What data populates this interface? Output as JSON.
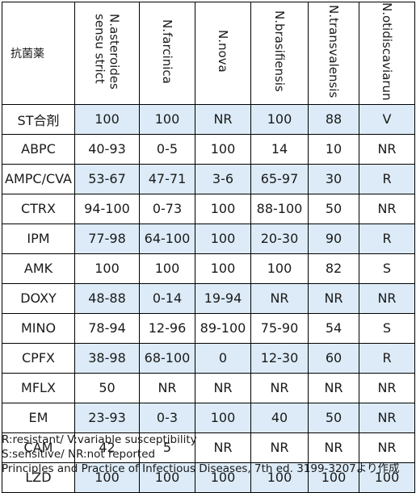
{
  "table": {
    "corner_label": "抗菌薬",
    "columns": [
      {
        "line1": "N.asteroides",
        "line2": "sensu strict"
      },
      {
        "line1": "N.farcinica",
        "line2": ""
      },
      {
        "line1": "N.nova",
        "line2": ""
      },
      {
        "line1": "N.brasifiensis",
        "line2": ""
      },
      {
        "line1": "N.transvalensis",
        "line2": ""
      },
      {
        "line1": "N.otidiscaviarun",
        "line2": ""
      }
    ],
    "rows": [
      {
        "drug": "ST合剤",
        "cells": [
          "100",
          "100",
          "NR",
          "100",
          "88",
          "V"
        ]
      },
      {
        "drug": "ABPC",
        "cells": [
          "40-93",
          "0-5",
          "100",
          "14",
          "10",
          "NR"
        ]
      },
      {
        "drug": "AMPC/CVA",
        "cells": [
          "53-67",
          "47-71",
          "3-6",
          "65-97",
          "30",
          "R"
        ]
      },
      {
        "drug": "CTRX",
        "cells": [
          "94-100",
          "0-73",
          "100",
          "88-100",
          "50",
          "NR"
        ]
      },
      {
        "drug": "IPM",
        "cells": [
          "77-98",
          "64-100",
          "100",
          "20-30",
          "90",
          "R"
        ]
      },
      {
        "drug": "AMK",
        "cells": [
          "100",
          "100",
          "100",
          "100",
          "82",
          "S"
        ]
      },
      {
        "drug": "DOXY",
        "cells": [
          "48-88",
          "0-14",
          "19-94",
          "NR",
          "NR",
          "NR"
        ]
      },
      {
        "drug": "MINO",
        "cells": [
          "78-94",
          "12-96",
          "89-100",
          "75-90",
          "54",
          "S"
        ]
      },
      {
        "drug": "CPFX",
        "cells": [
          "38-98",
          "68-100",
          "0",
          "12-30",
          "60",
          "R"
        ]
      },
      {
        "drug": "MFLX",
        "cells": [
          "50",
          "NR",
          "NR",
          "NR",
          "NR",
          "NR"
        ]
      },
      {
        "drug": "EM",
        "cells": [
          "23-93",
          "0-3",
          "100",
          "40",
          "50",
          "NR"
        ]
      },
      {
        "drug": "CAM",
        "cells": [
          "42",
          "5",
          "NR",
          "NR",
          "NR",
          "NR"
        ]
      },
      {
        "drug": "LZD",
        "cells": [
          "100",
          "100",
          "100",
          "100",
          "100",
          "100"
        ]
      }
    ]
  },
  "notes": {
    "line1": "R:resistant/ V:variable susceptibility",
    "line2": "S:sensitive/ NR:not reported",
    "line3": "Principles and Practice of Infectious Diseases, 7th ed. 3199-3207より作成"
  },
  "colors": {
    "row_stripe": "#dcebf7",
    "border": "#000000"
  }
}
